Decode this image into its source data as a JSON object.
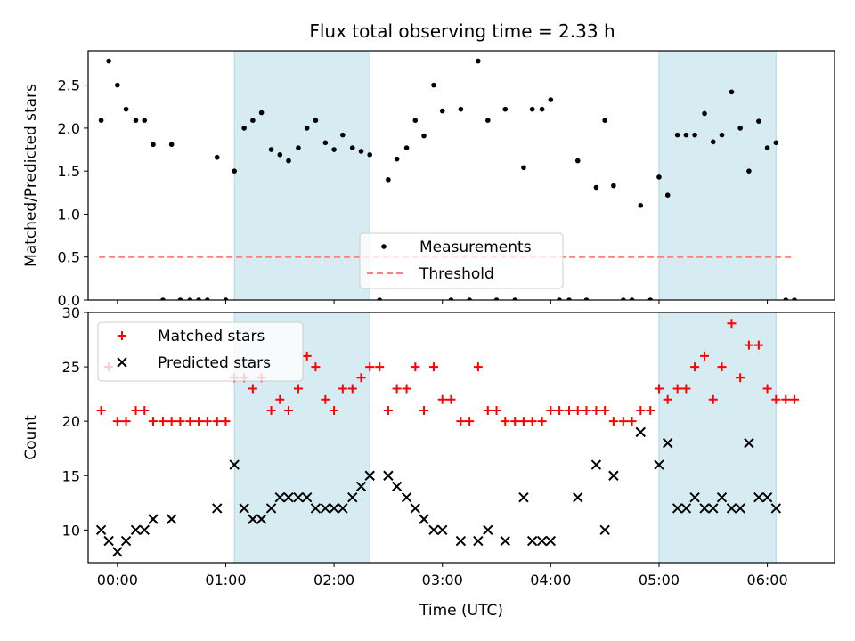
{
  "title": "Flux total observing time = 2.33 h",
  "chart_data": [
    {
      "type": "scatter",
      "ylabel": "Matched/Predicted stars",
      "xlim": [
        -0.27,
        6.62
      ],
      "ylim": [
        0,
        2.9
      ],
      "yticks": [
        0.0,
        0.5,
        1.0,
        1.5,
        2.0,
        2.5
      ],
      "ytick_labels": [
        "0.0",
        "0.5",
        "1.0",
        "1.5",
        "2.0",
        "2.5"
      ],
      "legend_position": "lower-center",
      "shaded_intervals": [
        [
          1.08,
          2.33
        ],
        [
          5.0,
          6.08
        ]
      ],
      "threshold": {
        "name": "Threshold",
        "value": 0.5,
        "x_start": -0.17,
        "x_end": 6.25,
        "color": "#ff7f7f"
      },
      "series": [
        {
          "name": "Measurements",
          "color": "#000000",
          "marker": "dot",
          "points": [
            [
              -0.15,
              2.09
            ],
            [
              -0.08,
              2.78
            ],
            [
              0.0,
              2.5
            ],
            [
              0.08,
              2.22
            ],
            [
              0.17,
              2.09
            ],
            [
              0.25,
              2.09
            ],
            [
              0.33,
              1.81
            ],
            [
              0.42,
              0
            ],
            [
              0.5,
              1.81
            ],
            [
              0.58,
              0
            ],
            [
              0.67,
              0
            ],
            [
              0.75,
              0
            ],
            [
              0.83,
              0
            ],
            [
              0.92,
              1.66
            ],
            [
              1.0,
              0
            ],
            [
              1.08,
              1.5
            ],
            [
              1.17,
              2.0
            ],
            [
              1.25,
              2.09
            ],
            [
              1.33,
              2.18
            ],
            [
              1.42,
              1.75
            ],
            [
              1.5,
              1.69
            ],
            [
              1.58,
              1.62
            ],
            [
              1.67,
              1.77
            ],
            [
              1.75,
              2.0
            ],
            [
              1.83,
              2.09
            ],
            [
              1.92,
              1.83
            ],
            [
              2.0,
              1.75
            ],
            [
              2.08,
              1.92
            ],
            [
              2.17,
              1.77
            ],
            [
              2.25,
              1.73
            ],
            [
              2.33,
              1.69
            ],
            [
              2.42,
              0
            ],
            [
              2.5,
              1.4
            ],
            [
              2.58,
              1.64
            ],
            [
              2.67,
              1.77
            ],
            [
              2.75,
              2.09
            ],
            [
              2.83,
              1.91
            ],
            [
              2.92,
              2.5
            ],
            [
              3.0,
              2.2
            ],
            [
              3.08,
              0
            ],
            [
              3.17,
              2.22
            ],
            [
              3.25,
              0
            ],
            [
              3.33,
              2.78
            ],
            [
              3.42,
              2.09
            ],
            [
              3.5,
              0
            ],
            [
              3.58,
              2.22
            ],
            [
              3.67,
              0
            ],
            [
              3.75,
              1.54
            ],
            [
              3.83,
              2.22
            ],
            [
              3.92,
              2.22
            ],
            [
              4.0,
              2.33
            ],
            [
              4.08,
              0
            ],
            [
              4.17,
              0
            ],
            [
              4.25,
              1.62
            ],
            [
              4.33,
              0
            ],
            [
              4.42,
              1.31
            ],
            [
              4.5,
              2.09
            ],
            [
              4.58,
              1.33
            ],
            [
              4.67,
              0
            ],
            [
              4.75,
              0
            ],
            [
              4.83,
              1.1
            ],
            [
              4.92,
              0
            ],
            [
              5.0,
              1.43
            ],
            [
              5.08,
              1.22
            ],
            [
              5.17,
              1.92
            ],
            [
              5.25,
              1.92
            ],
            [
              5.33,
              1.92
            ],
            [
              5.42,
              2.17
            ],
            [
              5.5,
              1.84
            ],
            [
              5.58,
              1.92
            ],
            [
              5.67,
              2.42
            ],
            [
              5.75,
              2.0
            ],
            [
              5.83,
              1.5
            ],
            [
              5.92,
              2.08
            ],
            [
              6.0,
              1.77
            ],
            [
              6.08,
              1.83
            ],
            [
              6.17,
              0
            ],
            [
              6.25,
              0
            ]
          ]
        }
      ]
    },
    {
      "type": "scatter",
      "xlabel": "Time (UTC)",
      "ylabel": "Count",
      "xlim": [
        -0.27,
        6.62
      ],
      "ylim": [
        7,
        30
      ],
      "xticks": [
        0,
        1,
        2,
        3,
        4,
        5,
        6
      ],
      "xtick_labels": [
        "00:00",
        "01:00",
        "02:00",
        "03:00",
        "04:00",
        "05:00",
        "06:00"
      ],
      "yticks": [
        10,
        15,
        20,
        25,
        30
      ],
      "ytick_labels": [
        "10",
        "15",
        "20",
        "25",
        "30"
      ],
      "legend_position": "upper-left",
      "shaded_intervals": [
        [
          1.08,
          2.33
        ],
        [
          5.0,
          6.08
        ]
      ],
      "series": [
        {
          "name": "Matched stars",
          "color": "#ff0000",
          "marker": "plus",
          "points": [
            [
              -0.15,
              21
            ],
            [
              -0.08,
              25
            ],
            [
              0.0,
              20
            ],
            [
              0.08,
              20
            ],
            [
              0.17,
              21
            ],
            [
              0.25,
              21
            ],
            [
              0.33,
              20
            ],
            [
              0.42,
              20
            ],
            [
              0.5,
              20
            ],
            [
              0.58,
              20
            ],
            [
              0.67,
              20
            ],
            [
              0.75,
              20
            ],
            [
              0.83,
              20
            ],
            [
              0.92,
              20
            ],
            [
              1.0,
              20
            ],
            [
              1.08,
              24
            ],
            [
              1.17,
              24
            ],
            [
              1.25,
              23
            ],
            [
              1.33,
              24
            ],
            [
              1.42,
              21
            ],
            [
              1.5,
              22
            ],
            [
              1.58,
              21
            ],
            [
              1.67,
              23
            ],
            [
              1.75,
              26
            ],
            [
              1.83,
              25
            ],
            [
              1.92,
              22
            ],
            [
              2.0,
              21
            ],
            [
              2.08,
              23
            ],
            [
              2.17,
              23
            ],
            [
              2.25,
              24
            ],
            [
              2.33,
              25
            ],
            [
              2.42,
              25
            ],
            [
              2.5,
              21
            ],
            [
              2.58,
              23
            ],
            [
              2.67,
              23
            ],
            [
              2.75,
              25
            ],
            [
              2.83,
              21
            ],
            [
              2.92,
              25
            ],
            [
              3.0,
              22
            ],
            [
              3.08,
              22
            ],
            [
              3.17,
              20
            ],
            [
              3.25,
              20
            ],
            [
              3.33,
              25
            ],
            [
              3.42,
              21
            ],
            [
              3.5,
              21
            ],
            [
              3.58,
              20
            ],
            [
              3.67,
              20
            ],
            [
              3.75,
              20
            ],
            [
              3.83,
              20
            ],
            [
              3.92,
              20
            ],
            [
              4.0,
              21
            ],
            [
              4.08,
              21
            ],
            [
              4.17,
              21
            ],
            [
              4.25,
              21
            ],
            [
              4.33,
              21
            ],
            [
              4.42,
              21
            ],
            [
              4.5,
              21
            ],
            [
              4.58,
              20
            ],
            [
              4.67,
              20
            ],
            [
              4.75,
              20
            ],
            [
              4.83,
              21
            ],
            [
              4.92,
              21
            ],
            [
              5.0,
              23
            ],
            [
              5.08,
              22
            ],
            [
              5.17,
              23
            ],
            [
              5.25,
              23
            ],
            [
              5.33,
              25
            ],
            [
              5.42,
              26
            ],
            [
              5.5,
              22
            ],
            [
              5.58,
              25
            ],
            [
              5.67,
              29
            ],
            [
              5.75,
              24
            ],
            [
              5.83,
              27
            ],
            [
              5.92,
              27
            ],
            [
              6.0,
              23
            ],
            [
              6.08,
              22
            ],
            [
              6.17,
              22
            ],
            [
              6.25,
              22
            ]
          ]
        },
        {
          "name": "Predicted stars",
          "color": "#000000",
          "marker": "x",
          "points": [
            [
              -0.15,
              10
            ],
            [
              -0.08,
              9
            ],
            [
              0.0,
              8
            ],
            [
              0.08,
              9
            ],
            [
              0.17,
              10
            ],
            [
              0.25,
              10
            ],
            [
              0.33,
              11
            ],
            [
              0.5,
              11
            ],
            [
              0.92,
              12
            ],
            [
              1.08,
              16
            ],
            [
              1.17,
              12
            ],
            [
              1.25,
              11
            ],
            [
              1.33,
              11
            ],
            [
              1.42,
              12
            ],
            [
              1.5,
              13
            ],
            [
              1.58,
              13
            ],
            [
              1.67,
              13
            ],
            [
              1.75,
              13
            ],
            [
              1.83,
              12
            ],
            [
              1.92,
              12
            ],
            [
              2.0,
              12
            ],
            [
              2.08,
              12
            ],
            [
              2.17,
              13
            ],
            [
              2.25,
              14
            ],
            [
              2.33,
              15
            ],
            [
              2.5,
              15
            ],
            [
              2.58,
              14
            ],
            [
              2.67,
              13
            ],
            [
              2.75,
              12
            ],
            [
              2.83,
              11
            ],
            [
              2.92,
              10
            ],
            [
              3.0,
              10
            ],
            [
              3.17,
              9
            ],
            [
              3.33,
              9
            ],
            [
              3.42,
              10
            ],
            [
              3.58,
              9
            ],
            [
              3.75,
              13
            ],
            [
              3.83,
              9
            ],
            [
              3.92,
              9
            ],
            [
              4.0,
              9
            ],
            [
              4.25,
              13
            ],
            [
              4.42,
              16
            ],
            [
              4.5,
              10
            ],
            [
              4.58,
              15
            ],
            [
              4.83,
              19
            ],
            [
              5.0,
              16
            ],
            [
              5.08,
              18
            ],
            [
              5.17,
              12
            ],
            [
              5.25,
              12
            ],
            [
              5.33,
              13
            ],
            [
              5.42,
              12
            ],
            [
              5.5,
              12
            ],
            [
              5.58,
              13
            ],
            [
              5.67,
              12
            ],
            [
              5.75,
              12
            ],
            [
              5.83,
              18
            ],
            [
              5.92,
              13
            ],
            [
              6.0,
              13
            ],
            [
              6.08,
              12
            ]
          ]
        }
      ]
    }
  ]
}
